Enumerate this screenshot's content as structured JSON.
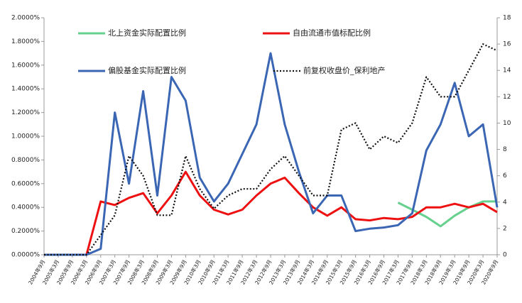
{
  "chart_data": {
    "type": "line",
    "categories": [
      "2004年9月",
      "2005年3月",
      "2005年9月",
      "2006年3月",
      "2006年9月",
      "2007年3月",
      "2007年9月",
      "2008年3月",
      "2008年9月",
      "2009年3月",
      "2009年9月",
      "2010年3月",
      "2010年9月",
      "2011年3月",
      "2011年9月",
      "2012年3月",
      "2012年9月",
      "2013年3月",
      "2013年9月",
      "2014年3月",
      "2014年9月",
      "2015年3月",
      "2015年9月",
      "2016年3月",
      "2016年9月",
      "2017年3月",
      "2017年9月",
      "2018年3月",
      "2018年9月",
      "2019年3月",
      "2019年9月",
      "2020年3月",
      "2020年9月"
    ],
    "ylim": [
      0,
      2.0
    ],
    "yticks": [
      {
        "value": 0,
        "label": "0.0000%"
      },
      {
        "value": 0.2,
        "label": "0.2000%"
      },
      {
        "value": 0.4,
        "label": "0.4000%"
      },
      {
        "value": 0.6,
        "label": "0.6000%"
      },
      {
        "value": 0.8,
        "label": "0.8000%"
      },
      {
        "value": 1.0,
        "label": "1.0000%"
      },
      {
        "value": 1.2,
        "label": "1.2000%"
      },
      {
        "value": 1.4,
        "label": "1.4000%"
      },
      {
        "value": 1.6,
        "label": "1.6000%"
      },
      {
        "value": 1.8,
        "label": "1.8000%"
      },
      {
        "value": 2.0,
        "label": "2.0000%"
      }
    ],
    "y2lim": [
      0,
      18
    ],
    "y2ticks": [
      0,
      2,
      4,
      6,
      8,
      10,
      12,
      14,
      16,
      18
    ],
    "series": [
      {
        "name": "北上资金实际配置比例",
        "color": "#66d08e",
        "dash": false,
        "values": [
          null,
          null,
          null,
          null,
          null,
          null,
          null,
          null,
          null,
          null,
          null,
          null,
          null,
          null,
          null,
          null,
          null,
          null,
          null,
          null,
          null,
          null,
          null,
          null,
          null,
          0.44,
          0.38,
          0.32,
          0.24,
          0.33,
          0.4,
          0.45,
          0.45
        ]
      },
      {
        "name": "自由流通市值标配比例",
        "color": "#ee1111",
        "dash": false,
        "values": [
          0,
          0,
          0,
          0,
          0.45,
          0.42,
          0.48,
          0.52,
          0.35,
          0.5,
          0.7,
          0.5,
          0.38,
          0.34,
          0.38,
          0.5,
          0.6,
          0.65,
          0.52,
          0.4,
          0.33,
          0.4,
          0.3,
          0.29,
          0.31,
          0.3,
          0.32,
          0.4,
          0.4,
          0.43,
          0.4,
          0.43,
          0.36
        ]
      },
      {
        "name": "偏股基金实际配置比例",
        "color": "#3a66b4",
        "dash": false,
        "values": [
          0,
          0,
          0,
          0,
          0.05,
          1.2,
          0.6,
          1.38,
          0.5,
          1.5,
          1.3,
          0.65,
          0.45,
          0.6,
          0.85,
          1.1,
          1.7,
          1.1,
          0.7,
          0.35,
          0.5,
          0.5,
          0.2,
          0.22,
          0.23,
          0.25,
          0.35,
          0.88,
          1.1,
          1.45,
          1.0,
          1.1,
          0.4
        ]
      },
      {
        "name": "前复权收盘价_保利地产",
        "color": "#111111",
        "dash": true,
        "axis": "y2",
        "values": [
          0,
          0,
          0,
          0,
          1.5,
          3,
          7.5,
          6,
          3,
          3,
          7.5,
          5,
          3.5,
          4.5,
          5,
          5,
          6.5,
          7.5,
          6,
          4.5,
          4.5,
          9.5,
          10,
          8,
          9,
          8.5,
          10,
          13.5,
          12,
          12,
          14,
          16,
          15.5
        ]
      }
    ]
  }
}
